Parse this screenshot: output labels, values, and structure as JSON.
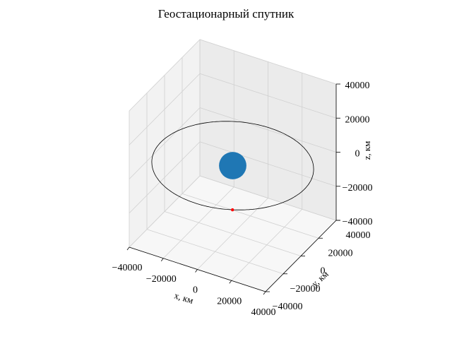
{
  "chart_data": {
    "type": "3d-line",
    "title": "Геостационарный спутник",
    "xlabel": "x, км",
    "ylabel": "y, км",
    "zlabel": "z, км",
    "xlim": [
      -40000,
      40000
    ],
    "ylim": [
      -40000,
      40000
    ],
    "zlim": [
      -40000,
      40000
    ],
    "x_ticks": [
      -40000,
      -20000,
      0,
      20000,
      40000
    ],
    "y_ticks": [
      -40000,
      -20000,
      0,
      20000,
      40000
    ],
    "z_ticks": [
      -40000,
      -20000,
      0,
      20000,
      40000
    ],
    "x_tick_labels": [
      "−40000",
      "−20000",
      "0",
      "20000",
      "40000"
    ],
    "y_tick_labels": [
      "−40000",
      "−20000",
      "0",
      "20000",
      "40000"
    ],
    "z_tick_labels": [
      "−40000",
      "−20000",
      "0",
      "20000",
      "40000"
    ],
    "grid": true,
    "series": [
      {
        "kind": "orbit",
        "shape": "circle",
        "radius": 42164,
        "center": [
          0,
          0,
          0
        ],
        "plane": "z=0",
        "color": "#000000"
      },
      {
        "kind": "planet",
        "shape": "sphere",
        "radius": 6371,
        "center": [
          0,
          0,
          0
        ],
        "color": "#1f77b4"
      },
      {
        "kind": "satellite",
        "point": [
          19300,
          -37500,
          0
        ],
        "color": "#ff0000"
      }
    ]
  }
}
